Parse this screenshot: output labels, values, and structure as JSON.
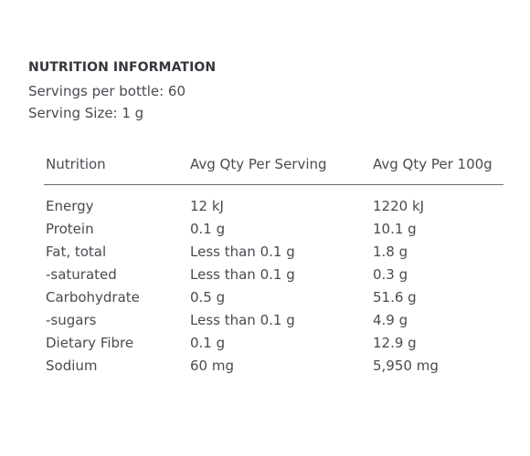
{
  "panel": {
    "heading": "NUTRITION INFORMATION",
    "servings_per_bottle": "Servings per bottle: 60",
    "serving_size": "Serving Size: 1 g"
  },
  "table": {
    "headers": [
      "Nutrition",
      "Avg Qty Per Serving",
      "Avg Qty Per 100g"
    ],
    "rows": [
      {
        "nutrient": "Energy",
        "per_serving": "12 kJ",
        "per_100g": "1220 kJ"
      },
      {
        "nutrient": "Protein",
        "per_serving": "0.1 g",
        "per_100g": "10.1 g"
      },
      {
        "nutrient": "Fat, total",
        "per_serving": "Less than 0.1 g",
        "per_100g": "1.8 g"
      },
      {
        "nutrient": "-saturated",
        "per_serving": "Less than 0.1 g",
        "per_100g": "0.3 g"
      },
      {
        "nutrient": "Carbohydrate",
        "per_serving": "0.5 g",
        "per_100g": "51.6 g"
      },
      {
        "nutrient": "-sugars",
        "per_serving": "Less than 0.1 g",
        "per_100g": "4.9 g"
      },
      {
        "nutrient": "Dietary Fibre",
        "per_serving": "0.1 g",
        "per_100g": "12.9 g"
      },
      {
        "nutrient": "Sodium",
        "per_serving": "60 mg",
        "per_100g": "5,950 mg"
      }
    ]
  }
}
